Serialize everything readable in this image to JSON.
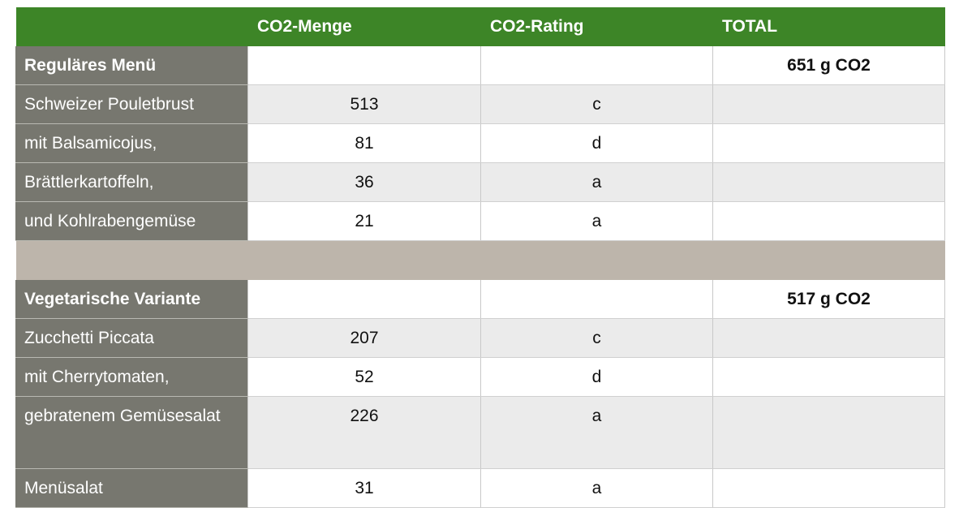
{
  "header": {
    "col0": "",
    "col1": "CO2-Menge",
    "col2": "CO2-Rating",
    "col3": "TOTAL"
  },
  "sections": [
    {
      "title": "Reguläres Menü",
      "total": "651 g CO2",
      "items": [
        {
          "name": "Schweizer Pouletbrust",
          "amount": "513",
          "rating": "c"
        },
        {
          "name": "mit Balsamicojus,",
          "amount": "81",
          "rating": "d"
        },
        {
          "name": "Brättlerkartoffeln,",
          "amount": "36",
          "rating": "a"
        },
        {
          "name": "und Kohlrabengemüse",
          "amount": "21",
          "rating": "a"
        }
      ]
    },
    {
      "title": "Vegetarische Variante",
      "total": "517 g CO2",
      "items": [
        {
          "name": "Zucchetti Piccata",
          "amount": "207",
          "rating": "c"
        },
        {
          "name": "mit Cherrytomaten,",
          "amount": "52",
          "rating": "d"
        },
        {
          "name": "gebratenem Gemüsesalat",
          "amount": "226",
          "rating": "a"
        },
        {
          "name": "Menüsalat",
          "amount": "31",
          "rating": "a"
        }
      ]
    }
  ],
  "colors": {
    "header_green": "#3d8527",
    "label_grey": "#77776f",
    "separator": "#bdb5ab",
    "row_alt": "#ebebeb"
  }
}
